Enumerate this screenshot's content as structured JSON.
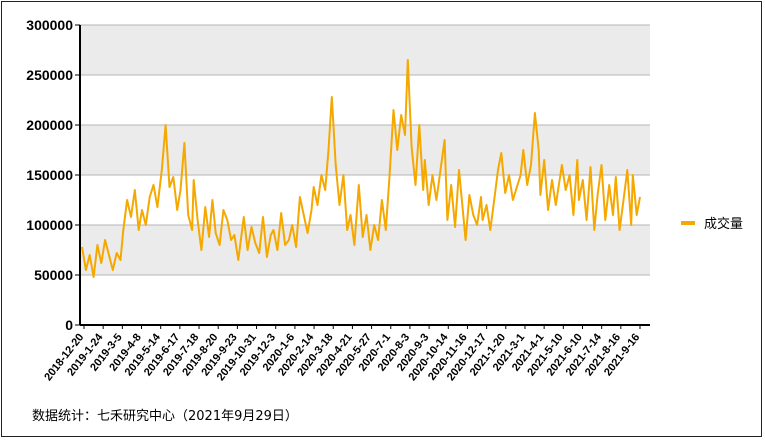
{
  "source_note": "数据统计：七禾研究中心（2021年9月29日）",
  "chart_data": {
    "type": "line",
    "title": "",
    "xlabel": "",
    "ylabel": "",
    "ylim": [
      0,
      300000
    ],
    "y_ticks": [
      "0",
      "50000",
      "100000",
      "150000",
      "200000",
      "250000",
      "300000"
    ],
    "legend": {
      "position": "right",
      "entries": [
        "成交量"
      ]
    },
    "grid": "horizontal bands",
    "colors": {
      "series": "#F5A800",
      "band": "#EBEBEB",
      "gridline": "#B5B5B5"
    },
    "x_tick_labels": [
      "2018-12-20",
      "2019-1-24",
      "2019-3-5",
      "2019-4-8",
      "2019-5-14",
      "2019-6-17",
      "2019-7-18",
      "2019-8-20",
      "2019-9-23",
      "2019-10-31",
      "2019-12-3",
      "2020-1-6",
      "2020-2-14",
      "2020-3-18",
      "2020-4-21",
      "2020-5-27",
      "2020-7-1",
      "2020-8-3",
      "2020-9-3",
      "2020-10-14",
      "2020-11-16",
      "2020-12-17",
      "2021-1-20",
      "2021-3-1",
      "2021-4-1",
      "2021-5-10",
      "2021-6-10",
      "2021-7-14",
      "2021-8-16",
      "2021-9-16"
    ],
    "series": [
      {
        "name": "成交量",
        "x": [
          "2018-12-20",
          "2018-12-27",
          "2019-1-3",
          "2019-1-10",
          "2019-1-17",
          "2019-1-24",
          "2019-1-31",
          "2019-2-14",
          "2019-2-21",
          "2019-2-28",
          "2019-3-5",
          "2019-3-12",
          "2019-3-19",
          "2019-3-26",
          "2019-4-2",
          "2019-4-8",
          "2019-4-15",
          "2019-4-22",
          "2019-4-29",
          "2019-5-6",
          "2019-5-14",
          "2019-5-21",
          "2019-5-28",
          "2019-6-4",
          "2019-6-11",
          "2019-6-17",
          "2019-6-24",
          "2019-7-1",
          "2019-7-8",
          "2019-7-11",
          "2019-7-18",
          "2019-7-25",
          "2019-8-1",
          "2019-8-8",
          "2019-8-14",
          "2019-8-20",
          "2019-8-27",
          "2019-9-3",
          "2019-9-10",
          "2019-9-17",
          "2019-9-23",
          "2019-9-30",
          "2019-10-10",
          "2019-10-17",
          "2019-10-24",
          "2019-10-31",
          "2019-11-7",
          "2019-11-14",
          "2019-11-21",
          "2019-11-28",
          "2019-12-3",
          "2019-12-10",
          "2019-12-17",
          "2019-12-24",
          "2019-12-31",
          "2020-1-6",
          "2020-1-13",
          "2020-1-20",
          "2020-2-3",
          "2020-2-10",
          "2020-2-14",
          "2020-2-21",
          "2020-2-28",
          "2020-3-6",
          "2020-3-12",
          "2020-3-18",
          "2020-3-25",
          "2020-4-1",
          "2020-4-8",
          "2020-4-15",
          "2020-4-21",
          "2020-4-28",
          "2020-5-6",
          "2020-5-13",
          "2020-5-20",
          "2020-5-27",
          "2020-6-3",
          "2020-6-10",
          "2020-6-17",
          "2020-6-24",
          "2020-7-1",
          "2020-7-8",
          "2020-7-15",
          "2020-7-22",
          "2020-7-29",
          "2020-8-3",
          "2020-8-10",
          "2020-8-17",
          "2020-8-24",
          "2020-8-31",
          "2020-9-3",
          "2020-9-10",
          "2020-9-17",
          "2020-9-24",
          "2020-10-9",
          "2020-10-14",
          "2020-10-21",
          "2020-10-28",
          "2020-11-4",
          "2020-11-11",
          "2020-11-16",
          "2020-11-23",
          "2020-11-30",
          "2020-12-7",
          "2020-12-14",
          "2020-12-17",
          "2020-12-24",
          "2020-12-31",
          "2021-1-7",
          "2021-1-14",
          "2021-1-20",
          "2021-1-27",
          "2021-2-3",
          "2021-2-10",
          "2021-2-24",
          "2021-3-1",
          "2021-3-8",
          "2021-3-15",
          "2021-3-22",
          "2021-3-29",
          "2021-4-1",
          "2021-4-8",
          "2021-4-15",
          "2021-4-22",
          "2021-4-29",
          "2021-5-10",
          "2021-5-17",
          "2021-5-24",
          "2021-5-31",
          "2021-6-7",
          "2021-6-10",
          "2021-6-17",
          "2021-6-24",
          "2021-7-1",
          "2021-7-8",
          "2021-7-14",
          "2021-7-21",
          "2021-7-28",
          "2021-8-4",
          "2021-8-11",
          "2021-8-16",
          "2021-8-23",
          "2021-8-30",
          "2021-9-6",
          "2021-9-13",
          "2021-9-16",
          "2021-9-23",
          "2021-9-29"
        ],
        "values": [
          78000,
          55000,
          70000,
          48000,
          80000,
          62000,
          85000,
          55000,
          72000,
          65000,
          95000,
          125000,
          108000,
          135000,
          95000,
          115000,
          100000,
          128000,
          140000,
          118000,
          155000,
          200000,
          138000,
          148000,
          115000,
          135000,
          182000,
          110000,
          95000,
          145000,
          105000,
          75000,
          118000,
          88000,
          125000,
          92000,
          80000,
          115000,
          105000,
          85000,
          90000,
          65000,
          108000,
          75000,
          98000,
          82000,
          72000,
          108000,
          68000,
          90000,
          95000,
          75000,
          112000,
          80000,
          85000,
          100000,
          78000,
          128000,
          92000,
          115000,
          138000,
          120000,
          150000,
          135000,
          175000,
          228000,
          160000,
          120000,
          150000,
          95000,
          110000,
          80000,
          140000,
          88000,
          110000,
          75000,
          100000,
          85000,
          125000,
          95000,
          150000,
          215000,
          175000,
          210000,
          190000,
          265000,
          178000,
          140000,
          200000,
          135000,
          165000,
          120000,
          150000,
          125000,
          185000,
          105000,
          140000,
          98000,
          155000,
          115000,
          85000,
          130000,
          110000,
          100000,
          128000,
          105000,
          120000,
          95000,
          125000,
          155000,
          172000,
          132000,
          150000,
          125000,
          150000,
          175000,
          140000,
          160000,
          212000,
          175000,
          130000,
          165000,
          115000,
          145000,
          120000,
          160000,
          135000,
          150000,
          110000,
          165000,
          125000,
          145000,
          105000,
          158000,
          95000,
          130000,
          160000,
          105000,
          140000,
          110000,
          148000,
          95000,
          125000,
          155000,
          100000,
          150000,
          110000,
          128000
        ]
      }
    ]
  }
}
